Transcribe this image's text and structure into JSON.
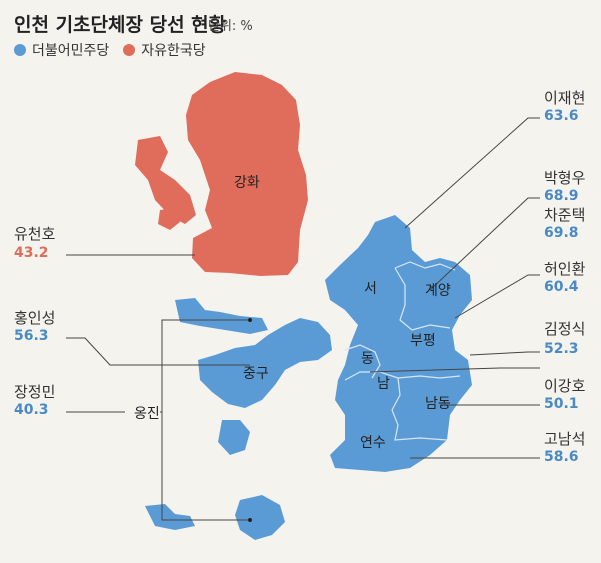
{
  "header": {
    "title": "인천 기초단체장 당선 현황",
    "unit": "단위: %"
  },
  "legend": [
    {
      "label": "더불어민주당",
      "color": "#5b9bd5"
    },
    {
      "label": "자유한국당",
      "color": "#e06c5b"
    }
  ],
  "regions": {
    "ganghwa": "강화",
    "seo": "서",
    "gyeyang": "계양",
    "bupyeong": "부평",
    "dong": "동",
    "nam": "남",
    "namdong": "남동",
    "yeonsu": "연수",
    "jung": "중구",
    "ongjin": "옹진"
  },
  "winners": [
    {
      "name": "이재현",
      "value": "63.6",
      "party": "dem"
    },
    {
      "name": "박형우",
      "value": "68.9",
      "party": "dem"
    },
    {
      "name": "차준택",
      "value": "69.8",
      "party": "dem"
    },
    {
      "name": "허인환",
      "value": "60.4",
      "party": "dem"
    },
    {
      "name": "김정식",
      "value": "52.3",
      "party": "dem"
    },
    {
      "name": "이강호",
      "value": "50.1",
      "party": "dem"
    },
    {
      "name": "고남석",
      "value": "58.6",
      "party": "dem"
    },
    {
      "name": "유천호",
      "value": "43.2",
      "party": "lkp"
    },
    {
      "name": "홍인성",
      "value": "56.3",
      "party": "dem"
    },
    {
      "name": "장정민",
      "value": "40.3",
      "party": "dem"
    }
  ],
  "colors": {
    "dem": "#5b9bd5",
    "lkp": "#e06c5b",
    "demText": "#4a8ac4",
    "lkpText": "#e06c5b"
  }
}
